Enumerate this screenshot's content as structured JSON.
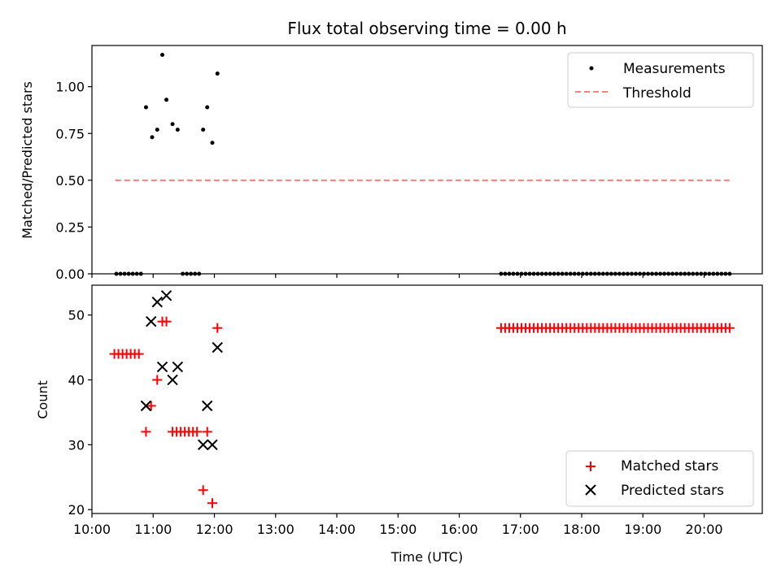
{
  "chart_data": [
    {
      "type": "scatter",
      "title": "Flux total observing time = 0.00 h",
      "xlabel": "",
      "ylabel": "Matched/Predicted stars",
      "xlim": [
        "10:00",
        "20:57"
      ],
      "ylim": [
        0.0,
        1.22
      ],
      "yticks": [
        "0.00",
        "0.25",
        "0.50",
        "0.75",
        "1.00"
      ],
      "legend_position": "top-right",
      "grid": false,
      "series": [
        {
          "name": "Measurements",
          "kind": "scatter",
          "color": "#000000",
          "points": [
            [
              "10:24",
              0.0
            ],
            [
              "10:28",
              0.0
            ],
            [
              "10:32",
              0.0
            ],
            [
              "10:36",
              0.0
            ],
            [
              "10:40",
              0.0
            ],
            [
              "10:44",
              0.0
            ],
            [
              "10:48",
              0.0
            ],
            [
              "10:53",
              0.89
            ],
            [
              "10:59",
              0.73
            ],
            [
              "11:04",
              0.77
            ],
            [
              "11:09",
              1.17
            ],
            [
              "11:13",
              0.93
            ],
            [
              "11:19",
              0.8
            ],
            [
              "11:24",
              0.77
            ],
            [
              "11:29",
              0.0
            ],
            [
              "11:33",
              0.0
            ],
            [
              "11:37",
              0.0
            ],
            [
              "11:41",
              0.0
            ],
            [
              "11:45",
              0.0
            ],
            [
              "11:49",
              0.77
            ],
            [
              "11:53",
              0.89
            ],
            [
              "11:58",
              0.7
            ],
            [
              "12:03",
              1.07
            ],
            [
              "16:41",
              0.0
            ],
            [
              "16:45",
              0.0
            ],
            [
              "16:49",
              0.0
            ],
            [
              "16:53",
              0.0
            ],
            [
              "16:57",
              0.0
            ],
            [
              "17:01",
              0.0
            ],
            [
              "17:05",
              0.0
            ],
            [
              "17:09",
              0.0
            ],
            [
              "17:13",
              0.0
            ],
            [
              "17:17",
              0.0
            ],
            [
              "17:21",
              0.0
            ],
            [
              "17:25",
              0.0
            ],
            [
              "17:29",
              0.0
            ],
            [
              "17:33",
              0.0
            ],
            [
              "17:37",
              0.0
            ],
            [
              "17:41",
              0.0
            ],
            [
              "17:45",
              0.0
            ],
            [
              "17:49",
              0.0
            ],
            [
              "17:53",
              0.0
            ],
            [
              "17:57",
              0.0
            ],
            [
              "18:01",
              0.0
            ],
            [
              "18:05",
              0.0
            ],
            [
              "18:09",
              0.0
            ],
            [
              "18:13",
              0.0
            ],
            [
              "18:17",
              0.0
            ],
            [
              "18:21",
              0.0
            ],
            [
              "18:25",
              0.0
            ],
            [
              "18:29",
              0.0
            ],
            [
              "18:33",
              0.0
            ],
            [
              "18:37",
              0.0
            ],
            [
              "18:41",
              0.0
            ],
            [
              "18:45",
              0.0
            ],
            [
              "18:49",
              0.0
            ],
            [
              "18:53",
              0.0
            ],
            [
              "18:57",
              0.0
            ],
            [
              "19:01",
              0.0
            ],
            [
              "19:05",
              0.0
            ],
            [
              "19:09",
              0.0
            ],
            [
              "19:13",
              0.0
            ],
            [
              "19:17",
              0.0
            ],
            [
              "19:21",
              0.0
            ],
            [
              "19:25",
              0.0
            ],
            [
              "19:29",
              0.0
            ],
            [
              "19:33",
              0.0
            ],
            [
              "19:37",
              0.0
            ],
            [
              "19:41",
              0.0
            ],
            [
              "19:45",
              0.0
            ],
            [
              "19:49",
              0.0
            ],
            [
              "19:53",
              0.0
            ],
            [
              "19:57",
              0.0
            ],
            [
              "20:01",
              0.0
            ],
            [
              "20:05",
              0.0
            ],
            [
              "20:09",
              0.0
            ],
            [
              "20:13",
              0.0
            ],
            [
              "20:17",
              0.0
            ],
            [
              "20:21",
              0.0
            ],
            [
              "20:25",
              0.0
            ]
          ]
        },
        {
          "name": "Threshold",
          "kind": "dashed-line",
          "color": "#ff7f7f",
          "points": [
            [
              "10:23",
              0.5
            ],
            [
              "20:25",
              0.5
            ]
          ]
        }
      ]
    },
    {
      "type": "scatter",
      "title": "",
      "xlabel": "Time (UTC)",
      "ylabel": "Count",
      "xlim": [
        "10:00",
        "20:57"
      ],
      "ylim": [
        19.4,
        54.6
      ],
      "xticks": [
        "10:00",
        "11:00",
        "12:00",
        "13:00",
        "14:00",
        "15:00",
        "16:00",
        "17:00",
        "18:00",
        "19:00",
        "20:00"
      ],
      "yticks": [
        "20",
        "30",
        "40",
        "50"
      ],
      "legend_position": "bottom-right",
      "grid": false,
      "series": [
        {
          "name": "Matched stars",
          "kind": "plus",
          "color": "#ff0000",
          "points": [
            [
              "10:22",
              44
            ],
            [
              "10:26",
              44
            ],
            [
              "10:30",
              44
            ],
            [
              "10:34",
              44
            ],
            [
              "10:38",
              44
            ],
            [
              "10:42",
              44
            ],
            [
              "10:46",
              44
            ],
            [
              "10:53",
              32
            ],
            [
              "10:58",
              36
            ],
            [
              "11:04",
              40
            ],
            [
              "11:09",
              49
            ],
            [
              "11:13",
              49
            ],
            [
              "11:19",
              32
            ],
            [
              "11:23",
              32
            ],
            [
              "11:27",
              32
            ],
            [
              "11:31",
              32
            ],
            [
              "11:35",
              32
            ],
            [
              "11:39",
              32
            ],
            [
              "11:43",
              32
            ],
            [
              "11:49",
              23
            ],
            [
              "11:53",
              32
            ],
            [
              "11:58",
              21
            ],
            [
              "12:03",
              48
            ],
            [
              "16:41",
              48
            ],
            [
              "16:45",
              48
            ],
            [
              "16:49",
              48
            ],
            [
              "16:53",
              48
            ],
            [
              "16:57",
              48
            ],
            [
              "17:01",
              48
            ],
            [
              "17:05",
              48
            ],
            [
              "17:09",
              48
            ],
            [
              "17:13",
              48
            ],
            [
              "17:17",
              48
            ],
            [
              "17:21",
              48
            ],
            [
              "17:25",
              48
            ],
            [
              "17:29",
              48
            ],
            [
              "17:33",
              48
            ],
            [
              "17:37",
              48
            ],
            [
              "17:41",
              48
            ],
            [
              "17:45",
              48
            ],
            [
              "17:49",
              48
            ],
            [
              "17:53",
              48
            ],
            [
              "17:57",
              48
            ],
            [
              "18:01",
              48
            ],
            [
              "18:05",
              48
            ],
            [
              "18:09",
              48
            ],
            [
              "18:13",
              48
            ],
            [
              "18:17",
              48
            ],
            [
              "18:21",
              48
            ],
            [
              "18:25",
              48
            ],
            [
              "18:29",
              48
            ],
            [
              "18:33",
              48
            ],
            [
              "18:37",
              48
            ],
            [
              "18:41",
              48
            ],
            [
              "18:45",
              48
            ],
            [
              "18:49",
              48
            ],
            [
              "18:53",
              48
            ],
            [
              "18:57",
              48
            ],
            [
              "19:01",
              48
            ],
            [
              "19:05",
              48
            ],
            [
              "19:09",
              48
            ],
            [
              "19:13",
              48
            ],
            [
              "19:17",
              48
            ],
            [
              "19:21",
              48
            ],
            [
              "19:25",
              48
            ],
            [
              "19:29",
              48
            ],
            [
              "19:33",
              48
            ],
            [
              "19:37",
              48
            ],
            [
              "19:41",
              48
            ],
            [
              "19:45",
              48
            ],
            [
              "19:49",
              48
            ],
            [
              "19:53",
              48
            ],
            [
              "19:57",
              48
            ],
            [
              "20:01",
              48
            ],
            [
              "20:05",
              48
            ],
            [
              "20:09",
              48
            ],
            [
              "20:13",
              48
            ],
            [
              "20:17",
              48
            ],
            [
              "20:21",
              48
            ],
            [
              "20:25",
              48
            ]
          ]
        },
        {
          "name": "Predicted stars",
          "kind": "x",
          "color": "#000000",
          "points": [
            [
              "10:53",
              36
            ],
            [
              "10:58",
              49
            ],
            [
              "11:04",
              52
            ],
            [
              "11:09",
              42
            ],
            [
              "11:13",
              53
            ],
            [
              "11:19",
              40
            ],
            [
              "11:24",
              42
            ],
            [
              "11:49",
              30
            ],
            [
              "11:53",
              36
            ],
            [
              "11:58",
              30
            ],
            [
              "12:03",
              45
            ]
          ]
        }
      ]
    }
  ]
}
